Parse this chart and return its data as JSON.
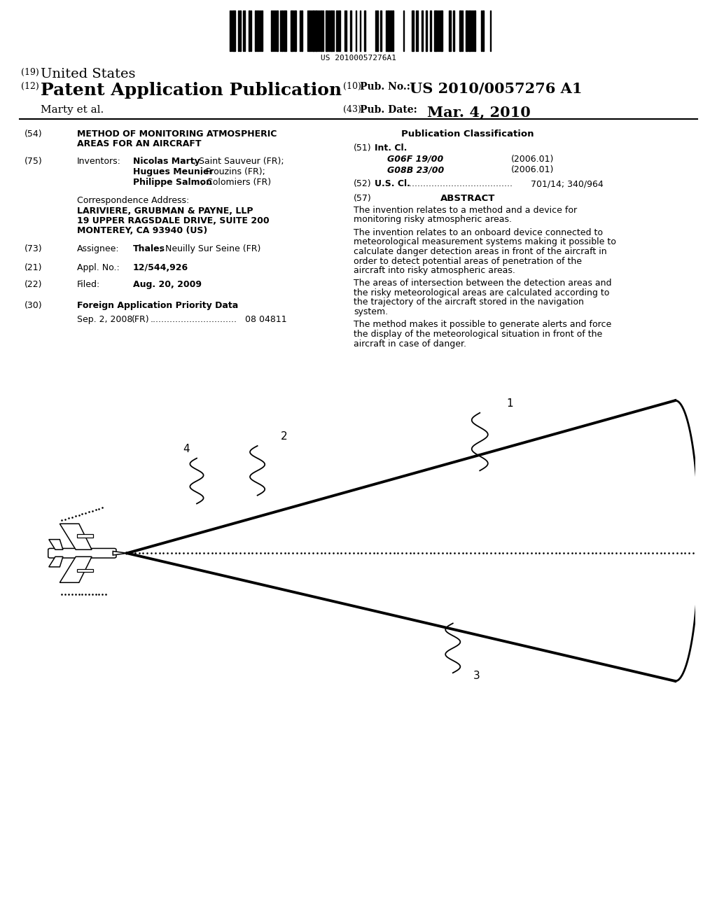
{
  "title_19": "(19) United States",
  "title_12_left": "(12) Patent Application Publication",
  "pub_no_label": "(10) Pub. No.:",
  "pub_no": "US 2010/0057276 A1",
  "pub_date_label": "(43) Pub. Date:",
  "pub_date": "Mar. 4, 2010",
  "author": "Marty et al.",
  "barcode_text": "US 20100057276A1",
  "field51_c1": "G06F 19/00",
  "field51_c1y": "(2006.01)",
  "field51_c2": "G08B 23/00",
  "field51_c2y": "(2006.01)",
  "field52_content": "701/14; 340/964",
  "abstract_p1": "The invention relates to a method and a device for monitoring risky atmospheric areas.",
  "abstract_p2": "The invention relates to an onboard device connected to meteorological measurement systems making it possible to calculate danger detection areas in front of the aircraft in order to detect potential areas of penetration of the aircraft into risky atmospheric areas.",
  "abstract_p3": "The areas of intersection between the detection areas and the risky meteorological areas are calculated according to the trajectory of the aircraft stored in the navigation system.",
  "abstract_p4": "The method makes it possible to generate alerts and force the display of the meteorological situation in front of the aircraft in case of danger.",
  "diag_label1": "1",
  "diag_label2": "2",
  "diag_label3": "3",
  "diag_label4": "4",
  "bg_color": "#ffffff"
}
